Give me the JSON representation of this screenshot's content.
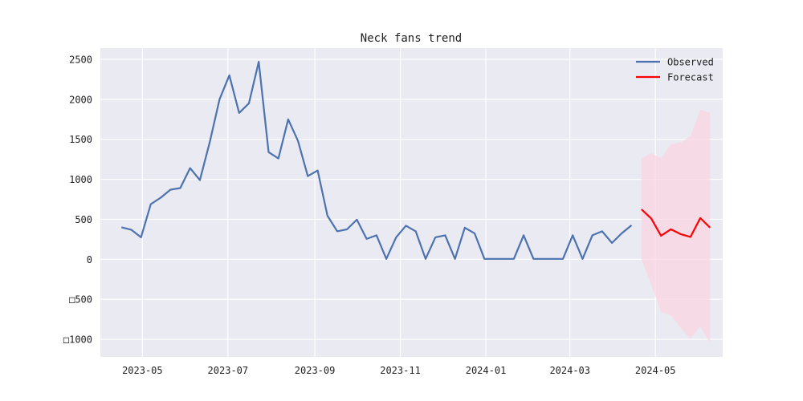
{
  "chart_data": {
    "type": "line",
    "title": "Neck fans trend",
    "xlabel": "",
    "ylabel": "",
    "xlim": [
      "2023-04-01",
      "2024-06-18"
    ],
    "ylim": [
      -1220,
      2640
    ],
    "grid": true,
    "legend_position": "top-right",
    "x_ticks": [
      "2023-05",
      "2023-07",
      "2023-09",
      "2023-11",
      "2024-01",
      "2024-03",
      "2024-05"
    ],
    "x_tick_dates": [
      "2023-05-01",
      "2023-07-01",
      "2023-09-01",
      "2023-11-01",
      "2024-01-01",
      "2024-03-01",
      "2024-05-01"
    ],
    "y_ticks": [
      -1000,
      -500,
      0,
      500,
      1000,
      1500,
      2000,
      2500
    ],
    "y_tick_labels": [
      "□1000",
      "□500",
      "0",
      "500",
      "1000",
      "1500",
      "2000",
      "2500"
    ],
    "series": [
      {
        "name": "Observed",
        "color": "#4c72b0",
        "points": [
          [
            "2023-04-16",
            400
          ],
          [
            "2023-04-23",
            370
          ],
          [
            "2023-04-30",
            275
          ],
          [
            "2023-05-07",
            690
          ],
          [
            "2023-05-14",
            770
          ],
          [
            "2023-05-21",
            870
          ],
          [
            "2023-05-28",
            890
          ],
          [
            "2023-06-04",
            1140
          ],
          [
            "2023-06-11",
            990
          ],
          [
            "2023-06-18",
            1460
          ],
          [
            "2023-06-25",
            2000
          ],
          [
            "2023-07-02",
            2300
          ],
          [
            "2023-07-09",
            1830
          ],
          [
            "2023-07-16",
            1950
          ],
          [
            "2023-07-23",
            2470
          ],
          [
            "2023-07-30",
            1340
          ],
          [
            "2023-08-06",
            1260
          ],
          [
            "2023-08-13",
            1750
          ],
          [
            "2023-08-20",
            1480
          ],
          [
            "2023-08-27",
            1040
          ],
          [
            "2023-09-03",
            1110
          ],
          [
            "2023-09-10",
            545
          ],
          [
            "2023-09-17",
            350
          ],
          [
            "2023-09-24",
            375
          ],
          [
            "2023-10-01",
            495
          ],
          [
            "2023-10-08",
            255
          ],
          [
            "2023-10-15",
            300
          ],
          [
            "2023-10-22",
            5
          ],
          [
            "2023-10-29",
            275
          ],
          [
            "2023-11-05",
            420
          ],
          [
            "2023-11-12",
            350
          ],
          [
            "2023-11-19",
            5
          ],
          [
            "2023-11-26",
            275
          ],
          [
            "2023-12-03",
            300
          ],
          [
            "2023-12-10",
            5
          ],
          [
            "2023-12-17",
            395
          ],
          [
            "2023-12-24",
            325
          ],
          [
            "2023-12-31",
            5
          ],
          [
            "2024-01-07",
            5
          ],
          [
            "2024-01-14",
            5
          ],
          [
            "2024-01-21",
            5
          ],
          [
            "2024-01-28",
            300
          ],
          [
            "2024-02-04",
            5
          ],
          [
            "2024-02-11",
            5
          ],
          [
            "2024-02-18",
            5
          ],
          [
            "2024-02-25",
            5
          ],
          [
            "2024-03-03",
            300
          ],
          [
            "2024-03-10",
            5
          ],
          [
            "2024-03-17",
            300
          ],
          [
            "2024-03-24",
            350
          ],
          [
            "2024-03-31",
            205
          ],
          [
            "2024-04-07",
            325
          ],
          [
            "2024-04-14",
            425
          ]
        ]
      },
      {
        "name": "Forecast",
        "color": "#ff0000",
        "points": [
          [
            "2024-04-21",
            625
          ],
          [
            "2024-04-28",
            510
          ],
          [
            "2024-05-05",
            295
          ],
          [
            "2024-05-12",
            375
          ],
          [
            "2024-05-19",
            315
          ],
          [
            "2024-05-26",
            280
          ],
          [
            "2024-06-02",
            515
          ],
          [
            "2024-06-09",
            395
          ]
        ]
      }
    ],
    "confidence_band": {
      "color": "#f9d6e3",
      "x": [
        "2024-04-21",
        "2024-04-28",
        "2024-05-05",
        "2024-05-12",
        "2024-05-19",
        "2024-05-26",
        "2024-06-02",
        "2024-06-09"
      ],
      "lower": [
        0,
        -320,
        -660,
        -700,
        -860,
        -990,
        -840,
        -1050
      ],
      "upper": [
        1260,
        1330,
        1260,
        1440,
        1460,
        1540,
        1870,
        1830
      ]
    }
  }
}
